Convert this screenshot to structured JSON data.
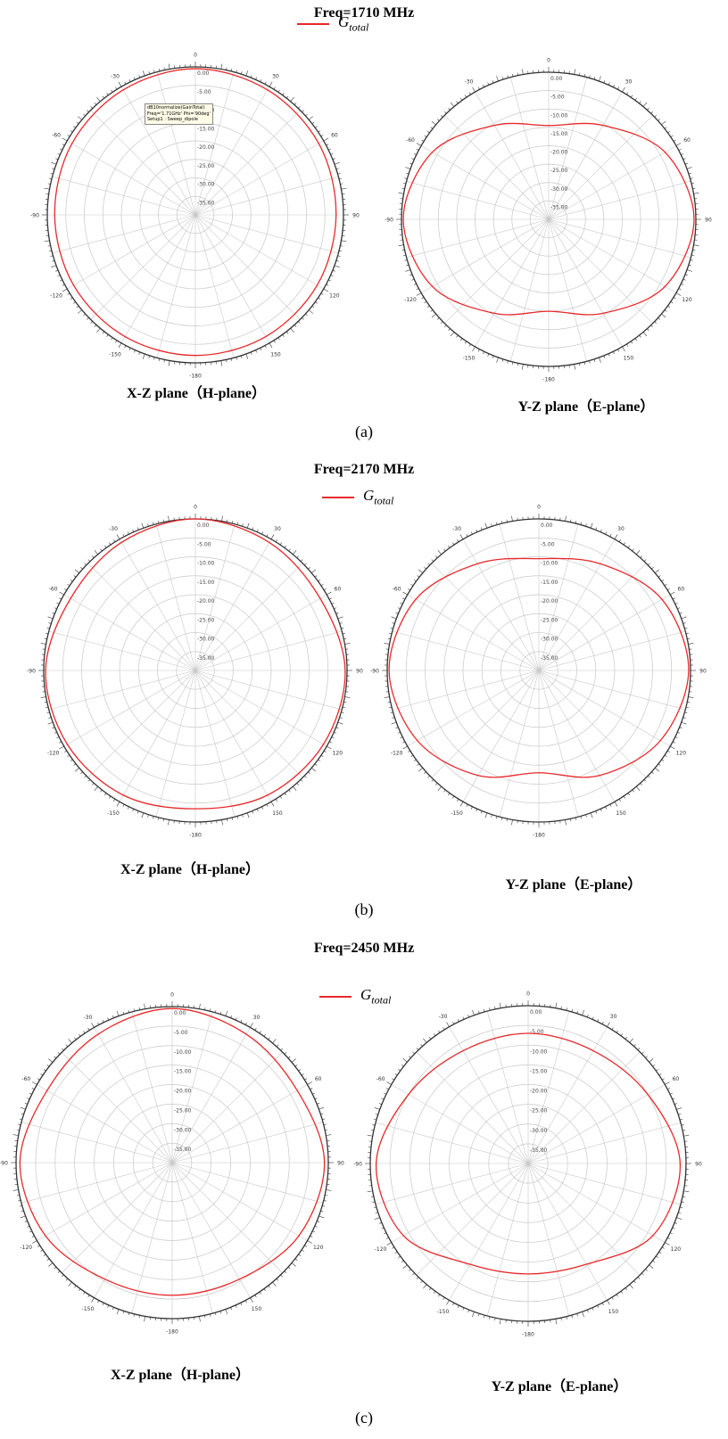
{
  "colors": {
    "trace": "#e8282a",
    "grid": "#c8c8c8",
    "frame": "#333333"
  },
  "legend_label_main": "G",
  "legend_label_sub": "total",
  "radial_labels": [
    "0.00",
    "-5.00",
    "-10.00",
    "-15.00",
    "-20.00",
    "-25.00",
    "-30.00",
    "-35.00"
  ],
  "angle_labels": [
    "0",
    "30",
    "60",
    "90",
    "120",
    "150",
    "-180",
    "-150",
    "-120",
    "-90",
    "-60",
    "-30"
  ],
  "tooltip_lines": [
    "dB10normalize(GainTotal)",
    "Freq='1.71GHz' Phi='90deg'",
    "Setup1 : Sweep_dipole"
  ],
  "groups": [
    {
      "id": "a",
      "title": "Freq=1710 MHz",
      "panel_label": "(a)",
      "plots": [
        {
          "caption": "X-Z plane（H-plane）"
        },
        {
          "caption": "Y-Z plane（E-plane）"
        }
      ]
    },
    {
      "id": "b",
      "title": "Freq=2170 MHz",
      "panel_label": "(b)",
      "plots": [
        {
          "caption": "X-Z plane（H-plane）"
        },
        {
          "caption": "Y-Z plane（E-plane）"
        }
      ]
    },
    {
      "id": "c",
      "title": "Freq=2450 MHz",
      "panel_label": "(c)",
      "plots": [
        {
          "caption": "X-Z plane（H-plane）"
        },
        {
          "caption": "Y-Z plane（E-plane）"
        }
      ]
    }
  ],
  "chart_data": [
    {
      "type": "polar",
      "freq_mhz": 1710,
      "plane": "X-Z",
      "series": [
        {
          "name": "Gtotal"
        }
      ],
      "r_range_db": [
        -40,
        0
      ],
      "theta_deg": [
        0,
        30,
        60,
        90,
        120,
        150,
        180,
        -150,
        -120,
        -90,
        -60,
        -30
      ],
      "gain_db": [
        -0.5,
        -1,
        -1.5,
        -2,
        -2,
        -2,
        -2,
        -2,
        -2,
        -2,
        -1.5,
        -1
      ]
    },
    {
      "type": "polar",
      "freq_mhz": 1710,
      "plane": "Y-Z",
      "series": [
        {
          "name": "Gtotal"
        }
      ],
      "r_range_db": [
        -40,
        0
      ],
      "theta_deg": [
        0,
        30,
        60,
        90,
        120,
        150,
        180,
        -150,
        -120,
        -90,
        -60,
        -30
      ],
      "gain_db": [
        -14.5,
        -10.5,
        -3.5,
        -0.5,
        -3.5,
        -10.5,
        -15,
        -10.5,
        -3.5,
        -0.5,
        -3.5,
        -10.5
      ]
    },
    {
      "type": "polar",
      "freq_mhz": 2170,
      "plane": "X-Z",
      "series": [
        {
          "name": "Gtotal"
        }
      ],
      "r_range_db": [
        -40,
        0
      ],
      "theta_deg": [
        0,
        30,
        60,
        90,
        120,
        150,
        180,
        -150,
        -120,
        -90,
        -60,
        -30
      ],
      "gain_db": [
        0,
        -1,
        -2,
        -0.5,
        -1,
        -2,
        -3.5,
        -2,
        -1,
        -0.5,
        -2,
        -1
      ]
    },
    {
      "type": "polar",
      "freq_mhz": 2170,
      "plane": "Y-Z",
      "series": [
        {
          "name": "Gtotal"
        }
      ],
      "r_range_db": [
        -40,
        0
      ],
      "theta_deg": [
        0,
        30,
        60,
        90,
        120,
        150,
        180,
        -150,
        -120,
        -90,
        -60,
        -30
      ],
      "gain_db": [
        -10.5,
        -7.5,
        -2.5,
        -0.5,
        -3,
        -8,
        -13,
        -8,
        -3,
        -0.5,
        -2.5,
        -7.5
      ]
    },
    {
      "type": "polar",
      "freq_mhz": 2450,
      "plane": "X-Z",
      "series": [
        {
          "name": "Gtotal"
        }
      ],
      "r_range_db": [
        -40,
        0
      ],
      "theta_deg": [
        0,
        30,
        60,
        90,
        120,
        150,
        180,
        -150,
        -120,
        -90,
        -60,
        -30
      ],
      "gain_db": [
        -0.5,
        -2,
        -3,
        -1,
        -2.5,
        -5.5,
        -6,
        -5.5,
        -2.5,
        -1,
        -3,
        -2
      ]
    },
    {
      "type": "polar",
      "freq_mhz": 2450,
      "plane": "Y-Z",
      "series": [
        {
          "name": "Gtotal"
        }
      ],
      "r_range_db": [
        -40,
        0
      ],
      "theta_deg": [
        0,
        30,
        60,
        90,
        120,
        150,
        180,
        -150,
        -120,
        -90,
        -60,
        -30
      ],
      "gain_db": [
        -7,
        -7,
        -5,
        -1.5,
        -3.5,
        -10.5,
        -12,
        -10.5,
        -3.5,
        -1.5,
        -5,
        -7
      ]
    }
  ]
}
